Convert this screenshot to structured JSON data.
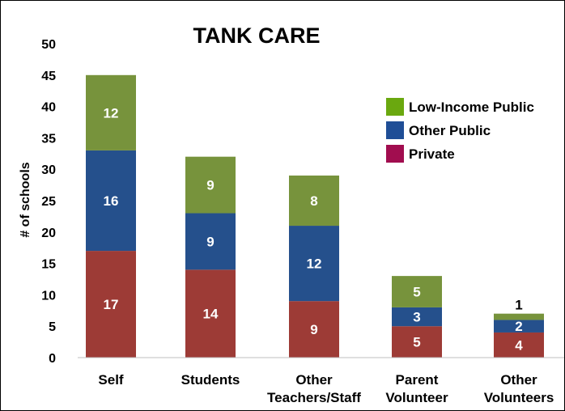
{
  "chart_data": {
    "type": "bar",
    "stacked": true,
    "title": "TANK CARE",
    "ylabel": "# of schools",
    "xlabel": "",
    "ylim": [
      0,
      50
    ],
    "yticks": [
      "0",
      "5",
      "10",
      "15",
      "20",
      "25",
      "30",
      "35",
      "40",
      "45",
      "50"
    ],
    "grid": false,
    "legend_position": "right",
    "categories": [
      [
        "Self"
      ],
      [
        "Students"
      ],
      [
        "Other",
        "Teachers/Staff"
      ],
      [
        "Parent",
        "Volunteer"
      ],
      [
        "Other",
        "Volunteers"
      ]
    ],
    "series": [
      {
        "name": "Private",
        "color": "#9d3b36",
        "values": [
          17,
          14,
          9,
          5,
          4
        ]
      },
      {
        "name": "Other Public",
        "color": "#25508c",
        "values": [
          16,
          9,
          12,
          3,
          2
        ]
      },
      {
        "name": "Low-Income Public",
        "color": "#77933c",
        "values": [
          12,
          9,
          8,
          5,
          1
        ]
      }
    ],
    "legend_order": [
      "Low-Income Public",
      "Other Public",
      "Private"
    ],
    "legend_colors": {
      "Low-Income Public": "#6aa80f",
      "Other Public": "#1f4e96",
      "Private": "#a10d4f"
    }
  }
}
